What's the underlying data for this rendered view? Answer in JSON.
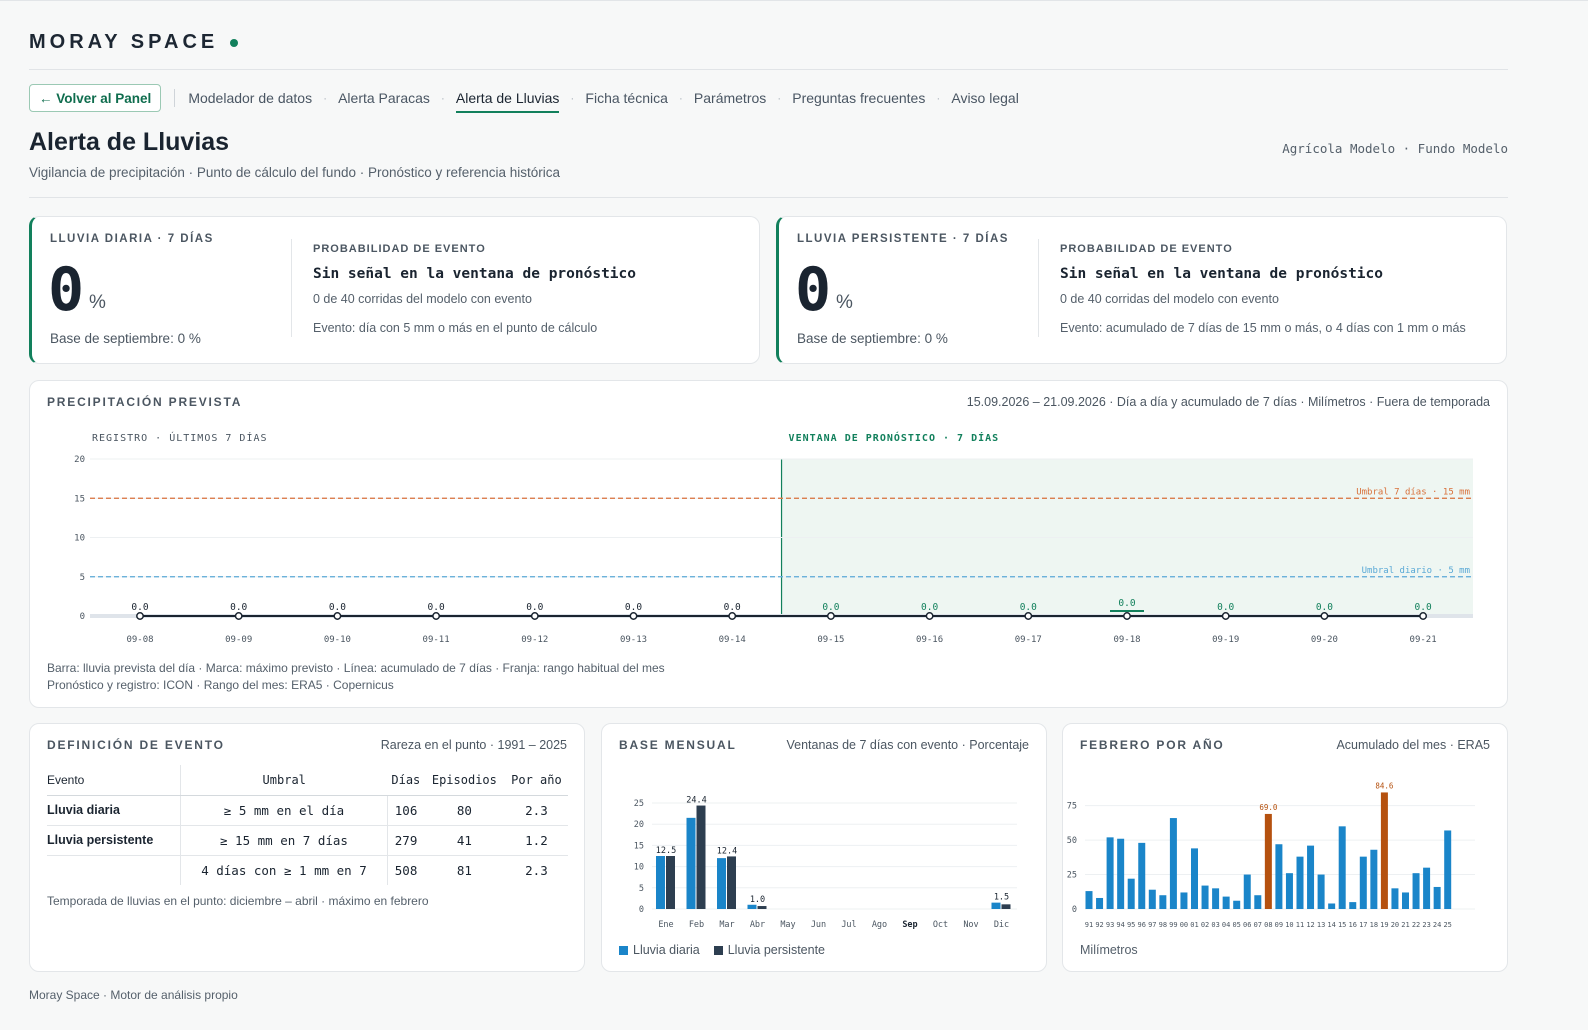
{
  "brand": "MORAY SPACE",
  "nav": {
    "back": "← Volver al Panel",
    "items": [
      "Modelador de datos",
      "Alerta Paracas",
      "Alerta de Lluvias",
      "Ficha técnica",
      "Parámetros",
      "Preguntas frecuentes",
      "Aviso legal"
    ],
    "active": "Alerta de Lluvias"
  },
  "header": {
    "title": "Alerta de Lluvias",
    "subtitle": "Vigilancia de precipitación · Punto de cálculo del fundo · Pronóstico y referencia histórica",
    "client": "Agrícola Modelo · Fundo Modelo"
  },
  "kpi": [
    {
      "label": "LLUVIA DIARIA · 7 DÍAS",
      "value": "0",
      "unit": "%",
      "base": "Base de septiembre: 0 %",
      "prob_label": "PROBABILIDAD DE EVENTO",
      "prob_head": "Sin señal en la ventana de pronóstico",
      "prob_runs": "0 de 40 corridas del modelo con evento",
      "event": "Evento: día con 5 mm o más en el punto de cálculo"
    },
    {
      "label": "LLUVIA PERSISTENTE · 7 DÍAS",
      "value": "0",
      "unit": "%",
      "base": "Base de septiembre: 0 %",
      "prob_label": "PROBABILIDAD DE EVENTO",
      "prob_head": "Sin señal en la ventana de pronóstico",
      "prob_runs": "0 de 40 corridas del modelo con evento",
      "event": "Evento: acumulado de 7 días de 15 mm o más, o 4 días con 1 mm o más"
    }
  ],
  "forecast": {
    "section": "PRECIPITACIÓN PREVISTA",
    "meta": "15.09.2026 – 21.09.2026 · Día a día y acumulado de 7 días · Milímetros · Fuera de temporada",
    "record_label": "REGISTRO · ÚLTIMOS 7 DÍAS",
    "window_label": "VENTANA DE PRONÓSTICO · 7 DÍAS",
    "note1": "Barra: lluvia prevista del día · Marca: máximo previsto · Línea: acumulado de 7 días · Franja: rango habitual del mes",
    "note2": "Pronóstico y registro: ICON · Rango del mes: ERA5 · Copernicus"
  },
  "definition": {
    "section": "DEFINICIÓN DE EVENTO",
    "meta": "Rareza en el punto · 1991 – 2025",
    "headers": [
      "Evento",
      "Umbral",
      "Días",
      "Episodios",
      "Por año"
    ],
    "rows": [
      [
        "Lluvia diaria",
        "≥ 5 mm en el día",
        "106",
        "80",
        "2.3"
      ],
      [
        "Lluvia persistente",
        "≥ 15 mm en 7 días",
        "279",
        "41",
        "1.2"
      ],
      [
        "",
        "4 días con ≥ 1 mm en 7",
        "508",
        "81",
        "2.3"
      ]
    ],
    "note": "Temporada de lluvias en el punto: diciembre – abril · máximo en febrero"
  },
  "monthly": {
    "section": "BASE MENSUAL",
    "meta": "Ventanas de 7 días con evento · Porcentaje",
    "legend": [
      "Lluvia diaria",
      "Lluvia persistente"
    ]
  },
  "february": {
    "section": "FEBRERO POR AÑO",
    "meta": "Acumulado del mes · ERA5",
    "unit": "Milímetros"
  },
  "footer": "Moray Space · Motor de análisis propio",
  "colors": {
    "accent": "#12805c",
    "daily": "#1a85c9",
    "persistent": "#2d3e50",
    "highlight": "#b5510f",
    "threshold7": "#d8703a",
    "thresholdDaily": "#5aa9d6"
  },
  "chart_data": [
    {
      "type": "bar",
      "title": "PRECIPITACIÓN PREVISTA",
      "x": [
        "09-08",
        "09-09",
        "09-10",
        "09-11",
        "09-12",
        "09-13",
        "09-14",
        "09-15",
        "09-16",
        "09-17",
        "09-18",
        "09-19",
        "09-20",
        "09-21"
      ],
      "values": [
        0.0,
        0.0,
        0.0,
        0.0,
        0.0,
        0.0,
        0.0,
        0.0,
        0.0,
        0.0,
        0.0,
        0.0,
        0.0,
        0.0
      ],
      "value_labels": [
        "0.0",
        "0.0",
        "0.0",
        "0.0",
        "0.0",
        "0.0",
        "0.0",
        "0.0",
        "0.0",
        "0.0",
        "0.0",
        "0.0",
        "0.0",
        "0.0"
      ],
      "accumulated_7d": [
        0,
        0,
        0,
        0,
        0,
        0,
        0,
        0,
        0,
        0,
        0,
        0,
        0,
        0
      ],
      "forecast_start": "09-15",
      "ylim": [
        0,
        20
      ],
      "yticks": [
        0,
        5,
        10,
        15,
        20
      ],
      "thresholds": [
        {
          "label": "Umbral 7 días · 15 mm",
          "value": 15
        },
        {
          "label": "Umbral diario · 5 mm",
          "value": 5
        }
      ],
      "habitual_range_marker": "09-18"
    },
    {
      "type": "bar",
      "title": "BASE MENSUAL",
      "categories": [
        "Ene",
        "Feb",
        "Mar",
        "Abr",
        "May",
        "Jun",
        "Jul",
        "Ago",
        "Sep",
        "Oct",
        "Nov",
        "Dic"
      ],
      "highlight_category": "Sep",
      "series": [
        {
          "name": "Lluvia diaria",
          "values": [
            12.5,
            21.5,
            12.0,
            1.0,
            0,
            0,
            0,
            0,
            0,
            0,
            0,
            1.5
          ]
        },
        {
          "name": "Lluvia persistente",
          "values": [
            12.5,
            24.4,
            12.4,
            0.7,
            0,
            0,
            0,
            0,
            0,
            0,
            0,
            1.1
          ]
        }
      ],
      "value_labels": [
        {
          "category": "Ene",
          "label": "12.5"
        },
        {
          "category": "Feb",
          "label": "24.4"
        },
        {
          "category": "Mar",
          "label": "12.4"
        },
        {
          "category": "Abr",
          "label": "1.0"
        },
        {
          "category": "Dic",
          "label": "1.5"
        }
      ],
      "ylim": [
        0,
        25
      ],
      "yticks": [
        0,
        5,
        10,
        15,
        20,
        25
      ]
    },
    {
      "type": "bar",
      "title": "FEBRERO POR AÑO",
      "x": [
        "91",
        "92",
        "93",
        "94",
        "95",
        "96",
        "97",
        "98",
        "99",
        "00",
        "01",
        "02",
        "03",
        "04",
        "05",
        "06",
        "07",
        "08",
        "09",
        "10",
        "11",
        "12",
        "13",
        "14",
        "15",
        "16",
        "17",
        "18",
        "19",
        "20",
        "21",
        "22",
        "23",
        "24",
        "25"
      ],
      "values": [
        13,
        8,
        52,
        51,
        22,
        48,
        14,
        10,
        66,
        12,
        44,
        17,
        15,
        9,
        6,
        25,
        10,
        69.0,
        47,
        26,
        38,
        46,
        25,
        4,
        60,
        5,
        38,
        43,
        84.6,
        15,
        12,
        26,
        30,
        16,
        57
      ],
      "value_labels": [
        {
          "x": "08",
          "label": "69.0"
        },
        {
          "x": "19",
          "label": "84.6"
        }
      ],
      "highlight_x": [
        "08",
        "19"
      ],
      "ylim": [
        0,
        90
      ],
      "yticks": [
        0,
        25,
        50,
        75
      ],
      "ylabel": "Milímetros"
    }
  ]
}
